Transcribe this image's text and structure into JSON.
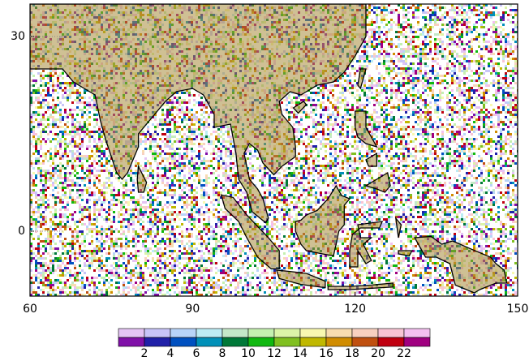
{
  "map": {
    "lonlim": [
      60,
      150
    ],
    "latlim": [
      -10,
      35
    ],
    "lon_ticks": [
      60,
      90,
      120,
      150
    ],
    "lat_ticks": [
      0,
      30
    ]
  },
  "colorbar": {
    "range": [
      0,
      24
    ],
    "ticks": [
      2,
      4,
      6,
      8,
      10,
      12,
      14,
      16,
      18,
      20,
      22
    ],
    "light_colors": [
      "#e4c4f4",
      "#c8c4f8",
      "#b8d4f8",
      "#bcecf4",
      "#c4e8c8",
      "#c4f0b0",
      "#dcf4a8",
      "#f8f8b0",
      "#f8dcb0",
      "#f8d0c0",
      "#f8c4d4",
      "#f4c0f0"
    ],
    "dark_colors": [
      "#8010a8",
      "#2020a8",
      "#0050c0",
      "#0090b8",
      "#007838",
      "#10b810",
      "#80c020",
      "#c0b800",
      "#d08c00",
      "#c05010",
      "#c00010",
      "#a00080"
    ]
  }
}
